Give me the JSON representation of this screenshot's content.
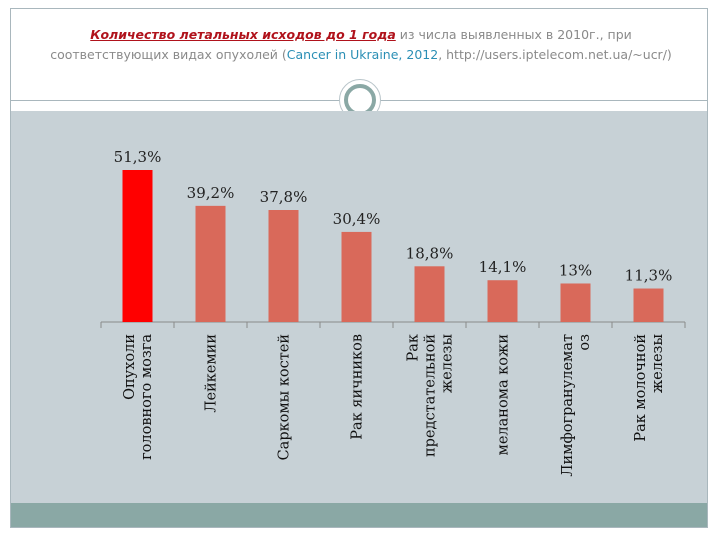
{
  "header": {
    "title_lead": "Количество летальных исходов до 1 года",
    "title_text": " из числа выявленных в 2010г., при соответствующих видах опухолей (",
    "title_source": "Cancer in Ukraine, 2012",
    "title_tail": ", http://users.iptelecom.net.ua/~ucr/)"
  },
  "colors": {
    "highlight_bar": "#ff0000",
    "bar": "#d9695a",
    "accent": "#8aa8a5"
  },
  "chart_data": {
    "type": "bar",
    "title": "Количество летальных исходов до 1 года из числа выявленных в 2010г., при соответствующих видах опухолей (Cancer in Ukraine, 2012, http://users.iptelecom.net.ua/~ucr/)",
    "categories": [
      [
        "Опухоли",
        "головного мозга"
      ],
      [
        "Лейкемии"
      ],
      [
        "Саркомы костей"
      ],
      [
        "Рак яичников"
      ],
      [
        "Рак",
        "предстательной",
        "железы"
      ],
      [
        "меланома кожи"
      ],
      [
        "Лимфогранулемат",
        "оз"
      ],
      [
        "Рак молочной",
        "железы"
      ]
    ],
    "values": [
      51.3,
      39.2,
      37.8,
      30.4,
      18.8,
      14.1,
      13,
      11.3
    ],
    "value_labels": [
      "51,3%",
      "39,2%",
      "37,8%",
      "30,4%",
      "18,8%",
      "14,1%",
      "13%",
      "11,3%"
    ],
    "highlight_index": 0,
    "ylim": [
      0,
      60
    ],
    "xlabel": "",
    "ylabel": "",
    "grid": false,
    "legend": "none"
  }
}
